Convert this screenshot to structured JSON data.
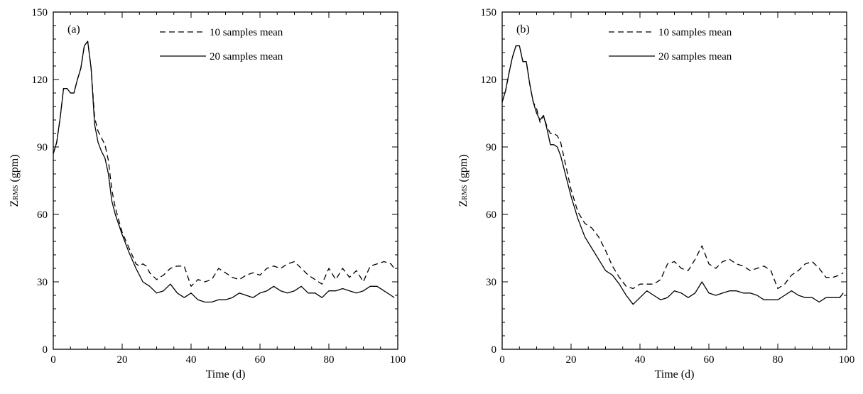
{
  "chart_data": [
    {
      "type": "line",
      "panel_label": "(a)",
      "xlabel": "Time (d)",
      "ylabel_main": "Z",
      "ylabel_sub": "RMS",
      "ylabel_unit": " (gpm)",
      "xlim": [
        0,
        100
      ],
      "ylim": [
        0,
        150
      ],
      "xticks": [
        0,
        20,
        40,
        60,
        80,
        100
      ],
      "yticks": [
        0,
        30,
        60,
        90,
        120,
        150
      ],
      "grid": false,
      "legend_position": "top-center",
      "series": [
        {
          "name": "10 samples mean",
          "style": "dashed",
          "x": [
            0,
            1,
            2,
            3,
            4,
            5,
            6,
            7,
            8,
            9,
            10,
            11,
            12,
            13,
            14,
            15,
            16,
            17,
            18,
            20,
            22,
            24,
            25,
            26,
            27,
            28,
            30,
            32,
            34,
            36,
            38,
            40,
            42,
            44,
            46,
            48,
            50,
            52,
            54,
            56,
            58,
            60,
            62,
            64,
            66,
            68,
            70,
            72,
            74,
            76,
            78,
            80,
            82,
            84,
            86,
            88,
            90,
            92,
            94,
            96,
            98,
            99
          ],
          "y": [
            87,
            92,
            103,
            116,
            116,
            114,
            114,
            120,
            125,
            135,
            137,
            125,
            103,
            97,
            94,
            91,
            84,
            71,
            63,
            52,
            45,
            38,
            37,
            38,
            37,
            34,
            31,
            33,
            36,
            37,
            37,
            28,
            31,
            30,
            31,
            36,
            34,
            32,
            31,
            33,
            34,
            33,
            36,
            37,
            36,
            38,
            39,
            36,
            33,
            31,
            29,
            36,
            31,
            36,
            32,
            35,
            30,
            37,
            38,
            39,
            38,
            36
          ]
        },
        {
          "name": "20 samples mean",
          "style": "solid",
          "x": [
            0,
            1,
            2,
            3,
            4,
            5,
            6,
            7,
            8,
            9,
            10,
            11,
            12,
            13,
            14,
            15,
            16,
            17,
            18,
            20,
            22,
            24,
            25,
            26,
            27,
            28,
            30,
            32,
            34,
            36,
            38,
            40,
            42,
            44,
            46,
            48,
            50,
            52,
            54,
            56,
            58,
            60,
            62,
            64,
            66,
            68,
            70,
            72,
            74,
            76,
            78,
            80,
            82,
            84,
            86,
            88,
            90,
            92,
            94,
            96,
            98,
            99
          ],
          "y": [
            87,
            92,
            103,
            116,
            116,
            114,
            114,
            120,
            125,
            135,
            137,
            125,
            100,
            92,
            88,
            85,
            78,
            66,
            60,
            51,
            43,
            36,
            33,
            30,
            29,
            28,
            25,
            26,
            29,
            25,
            23,
            25,
            22,
            21,
            21,
            22,
            22,
            23,
            25,
            24,
            23,
            25,
            26,
            28,
            26,
            25,
            26,
            28,
            25,
            25,
            23,
            26,
            26,
            27,
            26,
            25,
            26,
            28,
            28,
            26,
            24,
            23
          ]
        }
      ]
    },
    {
      "type": "line",
      "panel_label": "(b)",
      "xlabel": "Time (d)",
      "ylabel_main": "Z",
      "ylabel_sub": "RMS",
      "ylabel_unit": " (gpm)",
      "xlim": [
        0,
        100
      ],
      "ylim": [
        0,
        150
      ],
      "xticks": [
        0,
        20,
        40,
        60,
        80,
        100
      ],
      "yticks": [
        0,
        30,
        60,
        90,
        120,
        150
      ],
      "grid": false,
      "legend_position": "top-center",
      "series": [
        {
          "name": "10 samples mean",
          "style": "dashed",
          "x": [
            0,
            1,
            2,
            3,
            4,
            5,
            6,
            7,
            8,
            9,
            10,
            11,
            12,
            13,
            14,
            15,
            16,
            17,
            18,
            20,
            22,
            24,
            26,
            28,
            30,
            32,
            34,
            36,
            38,
            40,
            42,
            44,
            46,
            48,
            50,
            52,
            54,
            56,
            58,
            60,
            62,
            64,
            66,
            68,
            70,
            72,
            74,
            76,
            78,
            80,
            82,
            84,
            86,
            88,
            90,
            92,
            94,
            96,
            98,
            99
          ],
          "y": [
            110,
            115,
            123,
            130,
            135,
            135,
            128,
            128,
            118,
            110,
            107,
            101,
            104,
            99,
            96,
            96,
            95,
            92,
            85,
            71,
            61,
            56,
            54,
            50,
            44,
            37,
            32,
            28,
            27,
            29,
            29,
            29,
            31,
            38,
            39,
            36,
            35,
            40,
            46,
            38,
            36,
            39,
            40,
            38,
            37,
            35,
            36,
            37,
            35,
            27,
            29,
            33,
            35,
            38,
            39,
            36,
            32,
            32,
            33,
            34
          ]
        },
        {
          "name": "20 samples mean",
          "style": "solid",
          "x": [
            0,
            1,
            2,
            3,
            4,
            5,
            6,
            7,
            8,
            9,
            10,
            11,
            12,
            13,
            14,
            15,
            16,
            17,
            18,
            20,
            22,
            24,
            26,
            28,
            30,
            32,
            34,
            36,
            38,
            40,
            42,
            44,
            46,
            48,
            50,
            52,
            54,
            56,
            58,
            60,
            62,
            64,
            66,
            68,
            70,
            72,
            74,
            76,
            78,
            80,
            82,
            84,
            86,
            88,
            90,
            92,
            94,
            96,
            98,
            99
          ],
          "y": [
            110,
            115,
            123,
            130,
            135,
            135,
            128,
            128,
            118,
            110,
            105,
            102,
            104,
            98,
            91,
            91,
            90,
            86,
            80,
            68,
            58,
            50,
            45,
            40,
            35,
            33,
            29,
            24,
            20,
            23,
            26,
            24,
            22,
            23,
            26,
            25,
            23,
            25,
            30,
            25,
            24,
            25,
            26,
            26,
            25,
            25,
            24,
            22,
            22,
            22,
            24,
            26,
            24,
            23,
            23,
            21,
            23,
            23,
            23,
            25
          ]
        }
      ]
    }
  ]
}
